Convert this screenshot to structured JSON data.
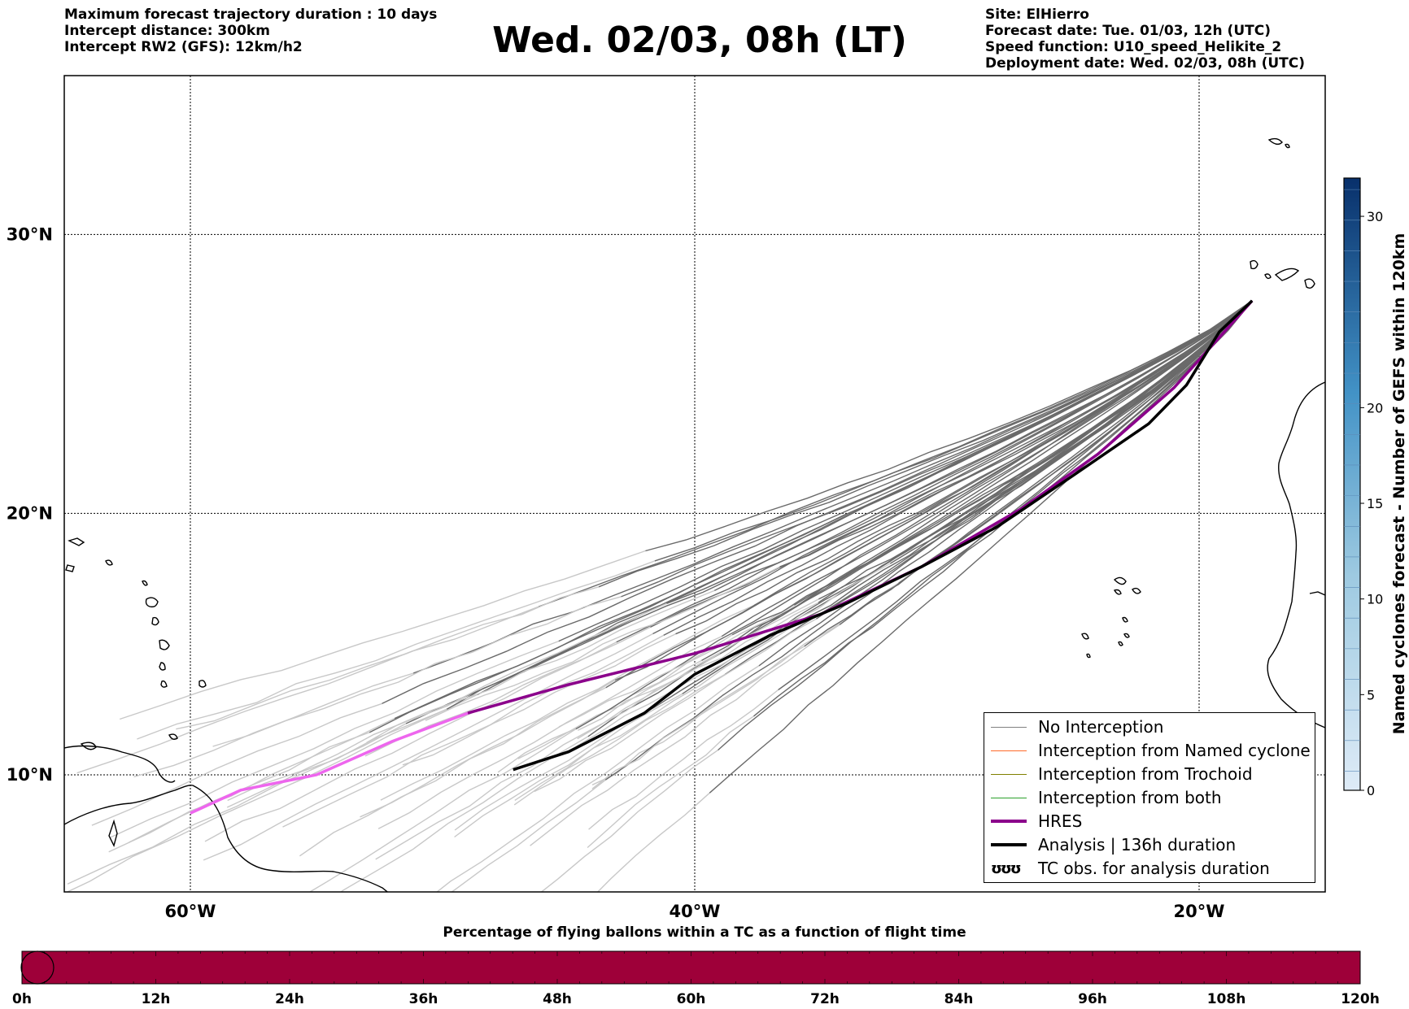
{
  "header": {
    "left_lines": [
      "Maximum forecast trajectory duration : 10 days",
      "Intercept distance: 300km",
      "Intercept RW2 (GFS):  12km/h2"
    ],
    "title": "Wed. 02/03, 08h (LT)",
    "right_lines": [
      "Site: ElHierro",
      "Forecast date: Tue. 01/03, 12h (UTC)",
      "Speed function: U10_speed_Helikite_2",
      "Deployment date: Wed. 02/03, 08h (UTC)"
    ]
  },
  "map": {
    "lat_labels": [
      "30°N",
      "20°N",
      "10°N"
    ],
    "lon_labels": [
      "60°W",
      "40°W",
      "20°W"
    ],
    "lat_values": [
      30,
      20,
      10
    ],
    "lon_values": [
      -60,
      -40,
      -20
    ],
    "extent": {
      "lon_min": -65,
      "lon_max": -15,
      "lat_min": 5.4,
      "lat_max": 35.3
    }
  },
  "colorbar": {
    "label": "Named cyclones forecast - Number of GEFS within 120km",
    "ticks": [
      "0",
      "5",
      "10",
      "15",
      "20",
      "30"
    ],
    "tick_values": [
      0,
      5,
      10,
      15,
      20,
      30
    ],
    "min": 0,
    "max": 32,
    "color_low": "#deebf7",
    "color_high": "#08306b"
  },
  "legend": {
    "items": [
      {
        "label": "No Interception",
        "color": "#808080",
        "style": "thin"
      },
      {
        "label": "Interception from Named cyclone",
        "color": "#ff6a2a",
        "style": "thin"
      },
      {
        "label": "Interception from Trochoid",
        "color": "#808000",
        "style": "thin"
      },
      {
        "label": "Interception from both",
        "color": "#2ca02c",
        "style": "thin"
      },
      {
        "label": "HRES",
        "color": "#8b008b",
        "style": "thick"
      },
      {
        "label": "Analysis | 136h duration",
        "color": "#000000",
        "style": "thick"
      },
      {
        "label": "TC obs. for analysis duration",
        "color": "#000000",
        "style": "symbol",
        "symbol": "ʊʊʊ"
      }
    ]
  },
  "timeline": {
    "title": "Percentage of flying ballons within a TC as a function of flight time",
    "ticks": [
      "0h",
      "12h",
      "24h",
      "36h",
      "48h",
      "60h",
      "72h",
      "84h",
      "96h",
      "108h",
      "120h"
    ],
    "bar_color": "#9e0039",
    "max_hours": 120
  },
  "trajectories": {
    "hres": {
      "color": "#8b008b",
      "early_color": "#ee66ee",
      "points": [
        [
          -60,
          8.5
        ],
        [
          -58,
          9.4
        ],
        [
          -55,
          10.0
        ],
        [
          -52,
          11.3
        ],
        [
          -49,
          12.4
        ],
        [
          -45,
          13.5
        ],
        [
          -40,
          14.7
        ],
        [
          -35,
          16.2
        ],
        [
          -31,
          18.0
        ],
        [
          -27,
          20.2
        ],
        [
          -24,
          22.2
        ],
        [
          -21,
          24.6
        ],
        [
          -19,
          26.6
        ],
        [
          -17.9,
          27.7
        ]
      ]
    },
    "analysis": {
      "color": "#000000",
      "points": [
        [
          -47.2,
          10.2
        ],
        [
          -45,
          10.9
        ],
        [
          -42,
          12.4
        ],
        [
          -40,
          13.9
        ],
        [
          -37,
          15.4
        ],
        [
          -34,
          16.6
        ],
        [
          -31,
          18.0
        ],
        [
          -28,
          19.5
        ],
        [
          -25,
          21.4
        ],
        [
          -22,
          23.3
        ],
        [
          -20.5,
          24.7
        ],
        [
          -19.2,
          26.6
        ],
        [
          -17.9,
          27.7
        ]
      ]
    }
  }
}
